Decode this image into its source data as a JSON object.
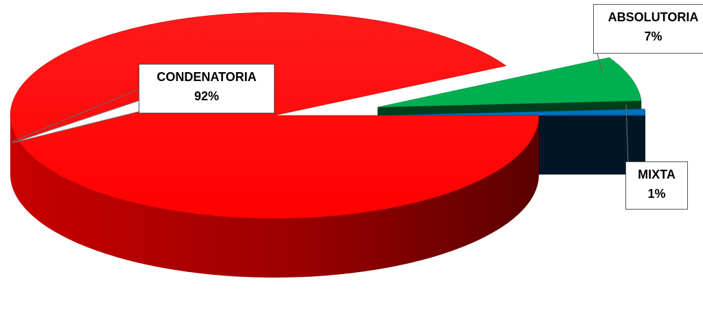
{
  "chart_data": {
    "type": "pie",
    "style": "3d-exploded",
    "slices": [
      {
        "label": "CONDENATORIA",
        "percent_label": "92%",
        "value": 92,
        "color": "#ff0000"
      },
      {
        "label": "ABSOLUTORIA",
        "percent_label": "7%",
        "value": 7,
        "color": "#00b050"
      },
      {
        "label": "MIXTA",
        "percent_label": "1%",
        "value": 1,
        "color": "#0070c0"
      }
    ],
    "legend": "none",
    "data_labels": "callouts"
  }
}
